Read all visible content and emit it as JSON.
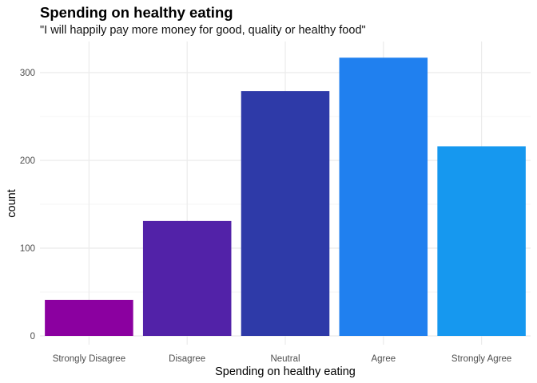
{
  "chart_data": {
    "type": "bar",
    "title": "Spending on healthy eating",
    "subtitle": "\"I will happily pay more money for good, quality or healthy food\"",
    "xlabel": "Spending on healthy eating",
    "ylabel": "count",
    "categories": [
      "Strongly Disagree",
      "Disagree",
      "Neutral",
      "Agree",
      "Strongly Agree"
    ],
    "values": [
      41,
      131,
      279,
      317,
      216
    ],
    "colors": [
      "#8b00a0",
      "#5222a8",
      "#2e3aa8",
      "#2080ef",
      "#1698ef"
    ],
    "ylim": [
      0,
      330
    ],
    "yticks": [
      0,
      100,
      200,
      300
    ],
    "grid": true,
    "legend": "none"
  }
}
